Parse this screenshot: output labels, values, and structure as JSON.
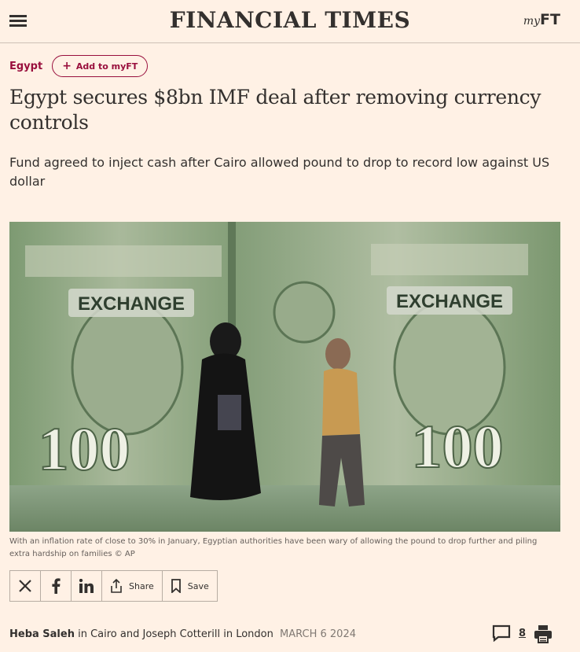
{
  "header": {
    "logo": "FINANCIAL TIMES",
    "myft_my": "my",
    "myft_ft": "FT"
  },
  "topic": {
    "label": "Egypt",
    "follow_label": "Add to myFT"
  },
  "article": {
    "headline": "Egypt secures $8bn IMF deal after removing currency controls",
    "standfirst": "Fund agreed to inject cash after Cairo allowed pound to drop to record low against US dollar",
    "caption": "With an inflation rate of close to 30% in January, Egyptian authorities have been wary of allowing the pound to drop further and piling extra hardship on families © AP"
  },
  "image_text": {
    "exchange_left": "EXCHANGE",
    "exchange_right": "EXCHANGE",
    "note_left": "100",
    "note_right": "100"
  },
  "share": {
    "share_label": "Share",
    "save_label": "Save"
  },
  "byline": {
    "author1": "Heba Saleh",
    "in1": "in Cairo and",
    "author2": "Joseph Cotterill",
    "in2": "in London",
    "date": "MARCH 6 2024"
  },
  "comments": {
    "count": "8"
  },
  "colors": {
    "background": "#fff1e5",
    "accent": "#990f3d",
    "text": "#33302e"
  }
}
